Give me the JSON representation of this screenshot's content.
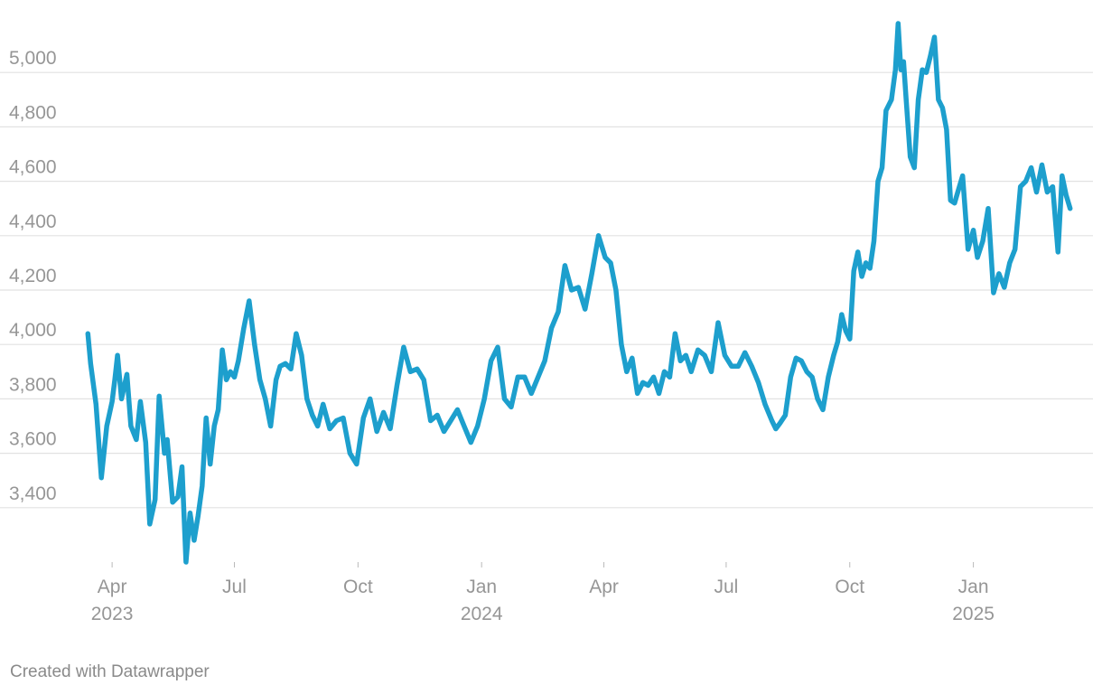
{
  "chart_data": {
    "type": "line",
    "title": "",
    "xlabel": "",
    "ylabel": "",
    "grid": true,
    "color": "#1d9fcd",
    "ylim": [
      3200,
      5200
    ],
    "xlim": [
      "2023-03-01",
      "2025-03-31"
    ],
    "yticks": [
      {
        "value": 3400,
        "label": "3,400"
      },
      {
        "value": 3600,
        "label": "3,600"
      },
      {
        "value": 3800,
        "label": "3,800"
      },
      {
        "value": 4000,
        "label": "4,000"
      },
      {
        "value": 4200,
        "label": "4,200"
      },
      {
        "value": 4400,
        "label": "4,400"
      },
      {
        "value": 4600,
        "label": "4,600"
      },
      {
        "value": 4800,
        "label": "4,800"
      },
      {
        "value": 5000,
        "label": "5,000"
      }
    ],
    "xticks": [
      {
        "date": "2023-04-01",
        "label": "Apr",
        "year": "2023"
      },
      {
        "date": "2023-07-01",
        "label": "Jul",
        "year": ""
      },
      {
        "date": "2023-10-01",
        "label": "Oct",
        "year": ""
      },
      {
        "date": "2024-01-01",
        "label": "Jan",
        "year": "2024"
      },
      {
        "date": "2024-04-01",
        "label": "Apr",
        "year": ""
      },
      {
        "date": "2024-07-01",
        "label": "Jul",
        "year": ""
      },
      {
        "date": "2024-10-01",
        "label": "Oct",
        "year": ""
      },
      {
        "date": "2025-01-01",
        "label": "Jan",
        "year": "2025"
      }
    ],
    "x": [
      "2023-03-14",
      "2023-03-16",
      "2023-03-20",
      "2023-03-24",
      "2023-03-28",
      "2023-04-01",
      "2023-04-03",
      "2023-04-05",
      "2023-04-08",
      "2023-04-12",
      "2023-04-15",
      "2023-04-19",
      "2023-04-22",
      "2023-04-26",
      "2023-04-29",
      "2023-05-03",
      "2023-05-06",
      "2023-05-10",
      "2023-05-12",
      "2023-05-16",
      "2023-05-20",
      "2023-05-23",
      "2023-05-26",
      "2023-05-29",
      "2023-06-01",
      "2023-06-04",
      "2023-06-07",
      "2023-06-10",
      "2023-06-13",
      "2023-06-16",
      "2023-06-19",
      "2023-06-22",
      "2023-06-25",
      "2023-06-28",
      "2023-07-01",
      "2023-07-04",
      "2023-07-08",
      "2023-07-12",
      "2023-07-16",
      "2023-07-20",
      "2023-07-24",
      "2023-07-28",
      "2023-08-01",
      "2023-08-04",
      "2023-08-08",
      "2023-08-12",
      "2023-08-16",
      "2023-08-20",
      "2023-08-24",
      "2023-08-28",
      "2023-09-01",
      "2023-09-05",
      "2023-09-10",
      "2023-09-15",
      "2023-09-20",
      "2023-09-25",
      "2023-09-30",
      "2023-10-05",
      "2023-10-10",
      "2023-10-15",
      "2023-10-20",
      "2023-10-25",
      "2023-10-30",
      "2023-11-04",
      "2023-11-09",
      "2023-11-14",
      "2023-11-19",
      "2023-11-24",
      "2023-11-29",
      "2023-12-04",
      "2023-12-09",
      "2023-12-14",
      "2023-12-19",
      "2023-12-24",
      "2023-12-29",
      "2024-01-03",
      "2024-01-08",
      "2024-01-13",
      "2024-01-18",
      "2024-01-23",
      "2024-01-28",
      "2024-02-02",
      "2024-02-07",
      "2024-02-12",
      "2024-02-17",
      "2024-02-22",
      "2024-02-27",
      "2024-03-03",
      "2024-03-08",
      "2024-03-13",
      "2024-03-18",
      "2024-03-23",
      "2024-03-28",
      "2024-04-02",
      "2024-04-06",
      "2024-04-10",
      "2024-04-14",
      "2024-04-18",
      "2024-04-22",
      "2024-04-26",
      "2024-04-30",
      "2024-05-04",
      "2024-05-08",
      "2024-05-12",
      "2024-05-16",
      "2024-05-20",
      "2024-05-24",
      "2024-05-28",
      "2024-06-01",
      "2024-06-05",
      "2024-06-10",
      "2024-06-15",
      "2024-06-20",
      "2024-06-25",
      "2024-06-30",
      "2024-07-05",
      "2024-07-10",
      "2024-07-15",
      "2024-07-20",
      "2024-07-25",
      "2024-07-30",
      "2024-08-04",
      "2024-08-07",
      "2024-08-10",
      "2024-08-14",
      "2024-08-18",
      "2024-08-22",
      "2024-08-26",
      "2024-08-30",
      "2024-09-03",
      "2024-09-07",
      "2024-09-11",
      "2024-09-15",
      "2024-09-19",
      "2024-09-22",
      "2024-09-25",
      "2024-09-28",
      "2024-10-01",
      "2024-10-04",
      "2024-10-07",
      "2024-10-10",
      "2024-10-13",
      "2024-10-16",
      "2024-10-19",
      "2024-10-22",
      "2024-10-25",
      "2024-10-28",
      "2024-11-01",
      "2024-11-04",
      "2024-11-06",
      "2024-11-08",
      "2024-11-10",
      "2024-11-12",
      "2024-11-15",
      "2024-11-18",
      "2024-11-21",
      "2024-11-24",
      "2024-11-27",
      "2024-11-30",
      "2024-12-03",
      "2024-12-06",
      "2024-12-09",
      "2024-12-12",
      "2024-12-15",
      "2024-12-18",
      "2024-12-21",
      "2024-12-24",
      "2024-12-28",
      "2025-01-01",
      "2025-01-04",
      "2025-01-08",
      "2025-01-12",
      "2025-01-16",
      "2025-01-20",
      "2025-01-24",
      "2025-01-28",
      "2025-02-01",
      "2025-02-05",
      "2025-02-09",
      "2025-02-13",
      "2025-02-17",
      "2025-02-21",
      "2025-02-25",
      "2025-03-01",
      "2025-03-05",
      "2025-03-08",
      "2025-03-11",
      "2025-03-14"
    ],
    "series": [
      {
        "values": [
          4040,
          3930,
          3780,
          3510,
          3700,
          3790,
          3870,
          3960,
          3800,
          3890,
          3700,
          3650,
          3790,
          3640,
          3340,
          3430,
          3810,
          3600,
          3650,
          3420,
          3440,
          3550,
          3200,
          3380,
          3280,
          3370,
          3480,
          3730,
          3560,
          3700,
          3760,
          3980,
          3870,
          3900,
          3880,
          3940,
          4060,
          4160,
          4000,
          3870,
          3800,
          3700,
          3870,
          3920,
          3930,
          3910,
          4040,
          3960,
          3800,
          3740,
          3700,
          3780,
          3690,
          3720,
          3730,
          3600,
          3560,
          3730,
          3800,
          3680,
          3750,
          3690,
          3850,
          3990,
          3900,
          3910,
          3870,
          3720,
          3740,
          3680,
          3720,
          3760,
          3700,
          3640,
          3700,
          3800,
          3940,
          3990,
          3800,
          3770,
          3880,
          3880,
          3820,
          3880,
          3940,
          4060,
          4120,
          4290,
          4200,
          4210,
          4130,
          4260,
          4400,
          4320,
          4300,
          4200,
          4000,
          3900,
          3950,
          3820,
          3860,
          3850,
          3880,
          3820,
          3900,
          3880,
          4040,
          3940,
          3960,
          3900,
          3980,
          3960,
          3900,
          4080,
          3960,
          3920,
          3920,
          3970,
          3920,
          3860,
          3780,
          3720,
          3690,
          3710,
          3740,
          3880,
          3950,
          3940,
          3900,
          3880,
          3800,
          3760,
          3880,
          3960,
          4010,
          4110,
          4050,
          4020,
          4270,
          4340,
          4250,
          4300,
          4280,
          4380,
          4600,
          4650,
          4860,
          4900,
          5010,
          5180,
          5010,
          5040,
          4900,
          4690,
          4650,
          4900,
          5010,
          5000,
          5060,
          5130,
          4900,
          4870,
          4790,
          4530,
          4520,
          4570,
          4620,
          4350,
          4420,
          4320,
          4380,
          4500,
          4190,
          4260,
          4210,
          4300,
          4350,
          4580,
          4600,
          4650,
          4560,
          4660,
          4560,
          4580,
          4340,
          4620,
          4550,
          4500
        ]
      }
    ],
    "credit": "Created with Datawrapper"
  }
}
